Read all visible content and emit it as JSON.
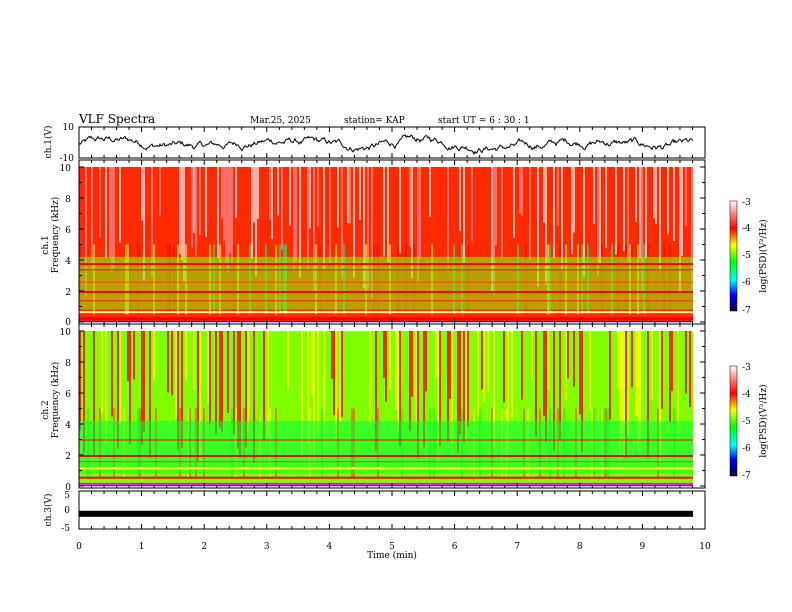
{
  "header": {
    "title": "VLF Spectra",
    "date": "Mar.25, 2025",
    "station": "station= KAP",
    "start": "start  UT =   6  : 30 : 1"
  },
  "chart_data": [
    {
      "type": "line",
      "panel": "ch1-waveform",
      "ylabel": "ch.1(V)",
      "ylim": [
        -10,
        10
      ],
      "yticks": [
        "10",
        "-10"
      ],
      "xlim": [
        0,
        10
      ]
    },
    {
      "type": "heatmap",
      "panel": "ch1-spectrogram",
      "ylabel_channel": "ch.1",
      "ylabel": "Frequency  (kHz)",
      "ylim": [
        0,
        10
      ],
      "yticks": [
        "0",
        "2",
        "4",
        "6",
        "8",
        "10"
      ],
      "xlim": [
        0,
        9.8
      ],
      "colorbar": {
        "ticks": [
          "-3",
          "-4",
          "-5",
          "-6",
          "-7"
        ],
        "label": "log(PSD)(V²/Hz)",
        "range": [
          -7,
          -3
        ]
      }
    },
    {
      "type": "heatmap",
      "panel": "ch2-spectrogram",
      "ylabel_channel": "ch.2",
      "ylabel": "Frequency  (kHz)",
      "ylim": [
        0,
        10
      ],
      "yticks": [
        "0",
        "2",
        "4",
        "6",
        "8",
        "10"
      ],
      "xlim": [
        0,
        9.8
      ],
      "colorbar": {
        "ticks": [
          "-3",
          "-4",
          "-5",
          "-6",
          "-7"
        ],
        "label": "log(PSD)(V²/Hz)",
        "range": [
          -7,
          -3
        ]
      }
    },
    {
      "type": "line",
      "panel": "ch3-waveform",
      "ylabel": "ch.3(V)",
      "ylim": [
        -5,
        5
      ],
      "yticks": [
        "5",
        "0",
        "-5"
      ],
      "xlim": [
        0,
        10
      ],
      "level": -1
    }
  ],
  "xaxis": {
    "label": "Time  (min)",
    "ticks": [
      "0",
      "1",
      "2",
      "3",
      "4",
      "5",
      "6",
      "7",
      "8",
      "9",
      "10"
    ],
    "range": [
      0,
      10
    ]
  }
}
